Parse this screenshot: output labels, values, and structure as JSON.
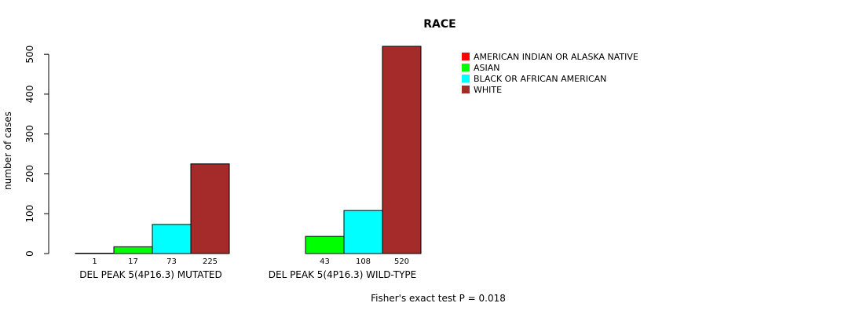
{
  "chart_data": {
    "type": "bar",
    "title": "RACE",
    "ylabel": "number of cases",
    "xlabel": "",
    "ylim": [
      0,
      520
    ],
    "yticks": [
      0,
      100,
      200,
      300,
      400,
      500
    ],
    "categories": [
      "DEL PEAK  5(4P16.3) MUTATED",
      "DEL PEAK  5(4P16.3) WILD-TYPE"
    ],
    "series": [
      {
        "name": "AMERICAN INDIAN OR ALASKA NATIVE",
        "color": "#ff0000",
        "values": [
          1,
          0
        ],
        "labels": [
          "1",
          ""
        ]
      },
      {
        "name": "ASIAN",
        "color": "#00ff00",
        "values": [
          17,
          43
        ],
        "labels": [
          "17",
          "43"
        ]
      },
      {
        "name": "BLACK OR AFRICAN AMERICAN",
        "color": "#00ffff",
        "values": [
          73,
          108
        ],
        "labels": [
          "73",
          "108"
        ]
      },
      {
        "name": "WHITE",
        "color": "#a52a2a",
        "values": [
          225,
          520
        ],
        "labels": [
          "225",
          "520"
        ]
      }
    ],
    "legend_position": "top-right",
    "footnote": "Fisher's exact test P = 0.018"
  }
}
